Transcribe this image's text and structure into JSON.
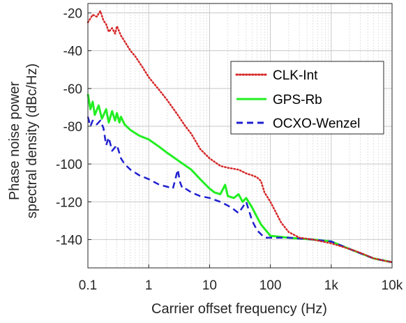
{
  "chart_data": {
    "type": "line",
    "xscale": "log",
    "xlim": [
      0.1,
      10000
    ],
    "ylim": [
      -155,
      -15
    ],
    "grid": true,
    "xlabel": "Carrier offset frequency (Hz)",
    "ylabel_lines": [
      "Phase noise power",
      "spectral density (dBc/Hz)"
    ],
    "x_ticks": [
      {
        "value": 0.1,
        "label": "0.1"
      },
      {
        "value": 1,
        "label": "1"
      },
      {
        "value": 10,
        "label": "10"
      },
      {
        "value": 100,
        "label": "100"
      },
      {
        "value": 1000,
        "label": "1k"
      },
      {
        "value": 10000,
        "label": "10k"
      }
    ],
    "y_ticks": [
      {
        "value": -20,
        "label": "-20"
      },
      {
        "value": -40,
        "label": "-40"
      },
      {
        "value": -60,
        "label": "-60"
      },
      {
        "value": -80,
        "label": "-80"
      },
      {
        "value": -100,
        "label": "-100"
      },
      {
        "value": -120,
        "label": "-120"
      },
      {
        "value": -140,
        "label": "-140"
      }
    ],
    "legend_position": "top-right inside",
    "series": [
      {
        "name": "CLK-Int",
        "color": "#d62728",
        "dash": "dotted",
        "x": [
          0.1,
          0.12,
          0.14,
          0.16,
          0.18,
          0.2,
          0.22,
          0.25,
          0.28,
          0.3,
          0.35,
          0.4,
          0.5,
          0.6,
          0.8,
          1,
          1.5,
          2,
          3,
          4,
          5,
          7,
          10,
          15,
          20,
          30,
          40,
          50,
          60,
          70,
          80,
          100,
          150,
          200,
          300,
          500,
          700,
          1000,
          2000,
          3000,
          5000,
          7000,
          10000
        ],
        "y": [
          -25,
          -21,
          -22,
          -19,
          -24,
          -26,
          -30,
          -28,
          -31,
          -27,
          -32,
          -35,
          -40,
          -43,
          -49,
          -54,
          -61,
          -66,
          -74,
          -80,
          -84,
          -92,
          -97,
          -101,
          -102,
          -103,
          -105,
          -106,
          -107,
          -109,
          -115,
          -120,
          -131,
          -136,
          -139,
          -140,
          -141,
          -142,
          -145,
          -147,
          -150,
          -151,
          -152
        ]
      },
      {
        "name": "GPS-Rb",
        "color": "#22ee22",
        "dash": "solid",
        "x": [
          0.1,
          0.11,
          0.12,
          0.13,
          0.15,
          0.17,
          0.2,
          0.22,
          0.25,
          0.28,
          0.3,
          0.33,
          0.35,
          0.4,
          0.5,
          0.7,
          1,
          1.5,
          2,
          3,
          5,
          7,
          10,
          12,
          15,
          18,
          20,
          25,
          30,
          35,
          40,
          50,
          60,
          70,
          100,
          200,
          500,
          1000,
          2000,
          5000,
          10000
        ],
        "y": [
          -63,
          -71,
          -67,
          -74,
          -69,
          -76,
          -71,
          -78,
          -72,
          -77,
          -73,
          -78,
          -75,
          -79,
          -82,
          -85,
          -87,
          -91,
          -94,
          -98,
          -103,
          -108,
          -113,
          -115,
          -116,
          -111,
          -117,
          -118,
          -116,
          -120,
          -118,
          -123,
          -128,
          -132,
          -138,
          -139,
          -140,
          -141,
          -145,
          -150,
          -152
        ]
      },
      {
        "name": "OCXO-Wenzel",
        "color": "#1f1fd0",
        "dash": "dashed",
        "x": [
          0.1,
          0.11,
          0.12,
          0.14,
          0.16,
          0.18,
          0.2,
          0.22,
          0.25,
          0.3,
          0.35,
          0.4,
          0.5,
          0.7,
          1,
          1.5,
          2,
          2.5,
          3,
          3.3,
          3.6,
          4,
          5,
          7,
          10,
          15,
          20,
          25,
          30,
          40,
          50,
          60,
          80,
          100,
          200,
          500,
          1000,
          2000,
          5000,
          10000
        ],
        "y": [
          -75,
          -80,
          -77,
          -79,
          -77,
          -81,
          -90,
          -86,
          -93,
          -90,
          -97,
          -100,
          -103,
          -106,
          -108,
          -111,
          -112,
          -113,
          -103,
          -110,
          -113,
          -113,
          -115,
          -117,
          -118,
          -120,
          -122,
          -124,
          -126,
          -120,
          -130,
          -135,
          -139,
          -139,
          -139,
          -140,
          -141,
          -145,
          -150,
          -152
        ]
      }
    ]
  }
}
